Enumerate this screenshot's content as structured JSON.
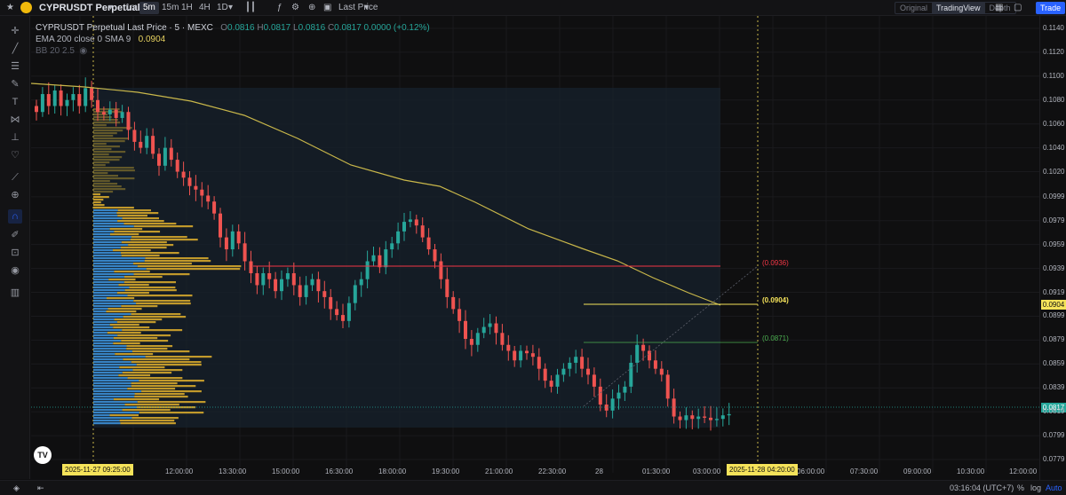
{
  "topbar": {
    "symbol": "CYPRUSDT Perpetual",
    "timeframes": [
      "1m",
      "5m",
      "15m",
      "1H",
      "4H",
      "1D"
    ],
    "active_timeframe": "5m",
    "price_source": "Last Price",
    "view_modes": [
      "Original",
      "TradingView",
      "Depth"
    ],
    "active_view_mode": "TradingView",
    "trade_label": "Trade"
  },
  "legend": {
    "title": "CYPRUSDT Perpetual Last Price · 5 · MEXC",
    "open": "0.0816",
    "high": "0.0817",
    "low": "0.0816",
    "close": "0.0817",
    "change": "0.0000 (+0.12%)",
    "ema_label": "EMA 200 close 0 SMA 9",
    "ema_value": "0.0904",
    "bb_label": "BB 20 2.5"
  },
  "price_axis": {
    "ticks": [
      "0.1140",
      "0.1120",
      "0.1100",
      "0.1080",
      "0.1060",
      "0.1040",
      "0.1020",
      "0.0999",
      "0.0979",
      "0.0959",
      "0.0939",
      "0.0919",
      "0.0899",
      "0.0879",
      "0.0859",
      "0.0839",
      "0.0819",
      "0.0799",
      "0.0779"
    ],
    "ema_tag": "0.0904",
    "last_price_tag": "0.0817"
  },
  "fib_labels": {
    "top": "(0.0936)",
    "mid": "(0.0904)",
    "bottom": "(0.0871)"
  },
  "time_axis": {
    "ticks": [
      "10:30:00",
      "12:00:00",
      "13:30:00",
      "15:00:00",
      "16:30:00",
      "18:00:00",
      "19:30:00",
      "21:00:00",
      "22:30:00",
      "28",
      "01:30:00",
      "03:00:00",
      "06:00:00",
      "07:30:00",
      "09:00:00",
      "10:30:00",
      "12:00:00"
    ],
    "start_marker": "2025-11-27   09:25:00",
    "end_marker": "2025-11-28   04:20:00"
  },
  "bottombar": {
    "time": "03:16:04 (UTC+7)",
    "percent_label": "%",
    "log_label": "log",
    "auto_label": "Auto"
  },
  "colors": {
    "up": "#26a69a",
    "down": "#ef5350",
    "ema": "#c9b74a",
    "accent": "#2962ff",
    "ema_tag": "#f5e35a",
    "last_tag": "#26a69a",
    "fib_top": "#f23645",
    "fib_mid": "#f5e35a",
    "fib_bottom": "#4caf50"
  },
  "chart_data": {
    "type": "candlestick",
    "symbol": "CYPRUSDT",
    "ylim": [
      0.0779,
      0.114
    ],
    "close_path": [
      0.107,
      0.1085,
      0.1075,
      0.1088,
      0.1075,
      0.108,
      0.1085,
      0.1075,
      0.109,
      0.108,
      0.107,
      0.1068,
      0.1072,
      0.1065,
      0.107,
      0.1055,
      0.1045,
      0.104,
      0.105,
      0.1035,
      0.1025,
      0.104,
      0.103,
      0.102,
      0.1015,
      0.1008,
      0.1005,
      0.1,
      0.0995,
      0.0985,
      0.0965,
      0.0955,
      0.097,
      0.096,
      0.0945,
      0.0935,
      0.0925,
      0.0935,
      0.093,
      0.092,
      0.093,
      0.0935,
      0.0925,
      0.0915,
      0.0925,
      0.093,
      0.092,
      0.0915,
      0.0905,
      0.09,
      0.0895,
      0.091,
      0.0925,
      0.093,
      0.0945,
      0.095,
      0.094,
      0.0955,
      0.096,
      0.097,
      0.0978,
      0.098,
      0.0975,
      0.0965,
      0.0955,
      0.0945,
      0.093,
      0.0915,
      0.0905,
      0.0895,
      0.088,
      0.0875,
      0.0885,
      0.089,
      0.0893,
      0.0885,
      0.0875,
      0.087,
      0.0862,
      0.087,
      0.0868,
      0.0865,
      0.0855,
      0.0845,
      0.084,
      0.085,
      0.0855,
      0.086,
      0.0865,
      0.0855,
      0.085,
      0.084,
      0.0825,
      0.082,
      0.083,
      0.0835,
      0.084,
      0.086,
      0.0875,
      0.087,
      0.0862,
      0.0855,
      0.085,
      0.083,
      0.0815,
      0.0812,
      0.0816,
      0.0813,
      0.0815,
      0.0814,
      0.0812,
      0.0813,
      0.0816,
      0.0817
    ],
    "overlays": [
      "EMA 200",
      "Volume profile",
      "Fibonacci levels"
    ]
  }
}
